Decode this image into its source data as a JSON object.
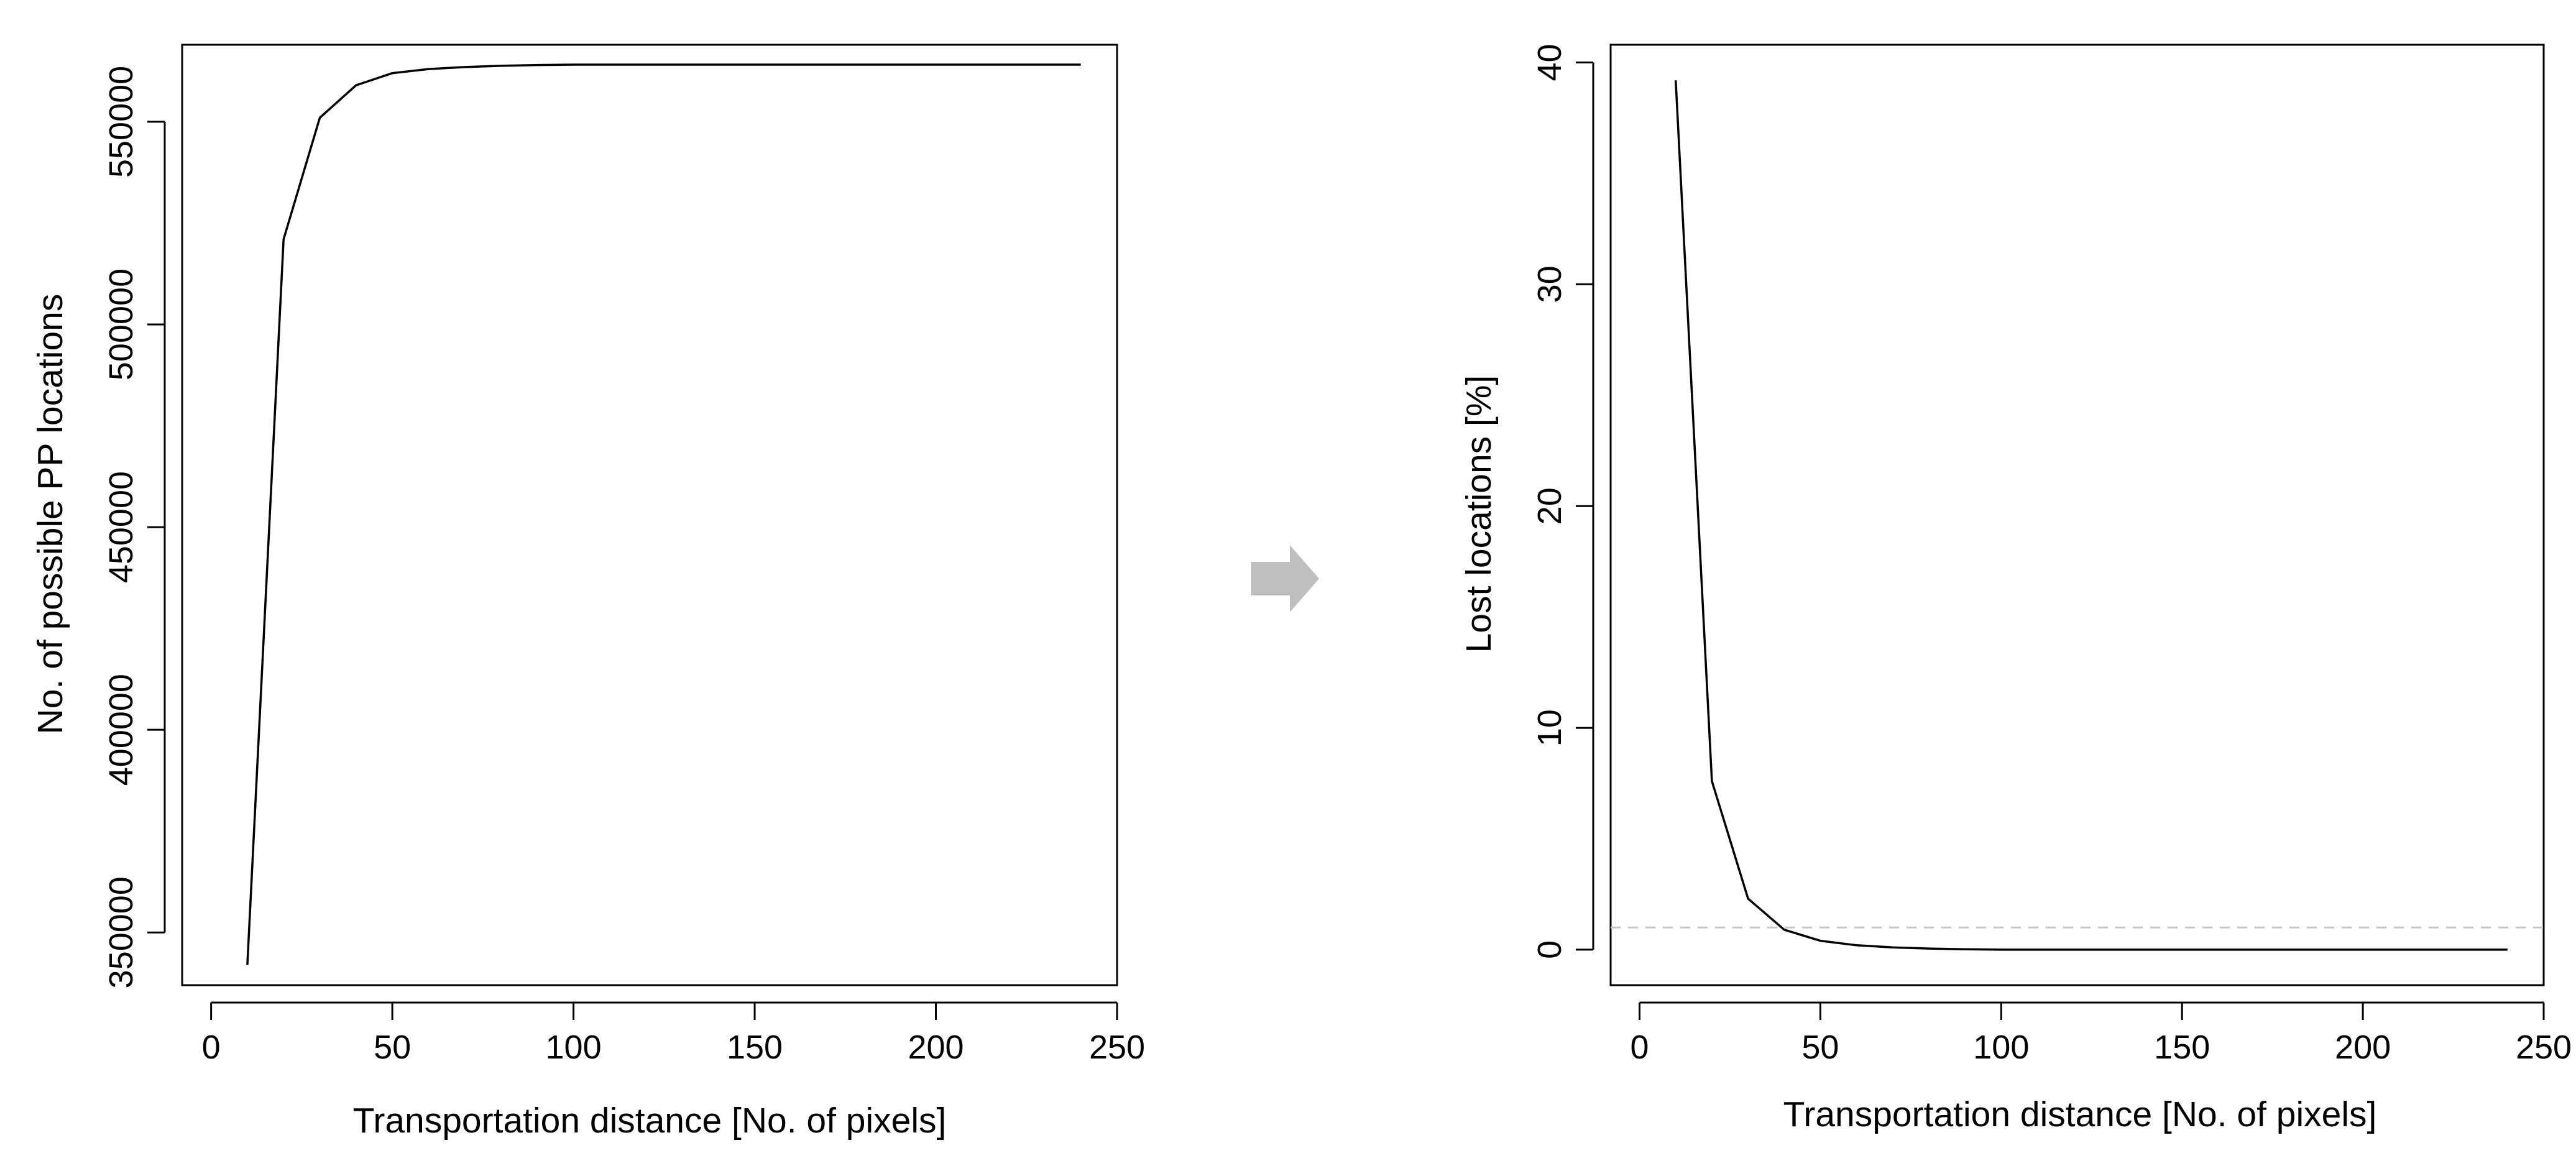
{
  "chart_data": [
    {
      "type": "line",
      "title": "",
      "xlabel": "Transportation distance [No. of pixels]",
      "ylabel": "No. of possible PP locations",
      "xlim": [
        -8,
        250
      ],
      "ylim": [
        337000,
        569000
      ],
      "xticks": [
        0,
        50,
        100,
        150,
        200,
        250
      ],
      "yticks": [
        350000,
        400000,
        450000,
        500000,
        550000
      ],
      "xtick_labels": [
        "0",
        "50",
        "100",
        "150",
        "200",
        "250"
      ],
      "ytick_labels": [
        "350000",
        "400000",
        "450000",
        "500000",
        "550000"
      ],
      "grid": false,
      "line_color": "#000000",
      "x": [
        10,
        20,
        30,
        40,
        50,
        60,
        70,
        80,
        90,
        100,
        110,
        120,
        130,
        140,
        150,
        160,
        170,
        180,
        190,
        200,
        210,
        220,
        230,
        240
      ],
      "values": [
        342000,
        521000,
        551000,
        559000,
        562000,
        563000,
        563500,
        563800,
        564000,
        564100,
        564100,
        564100,
        564100,
        564100,
        564100,
        564100,
        564100,
        564100,
        564100,
        564100,
        564100,
        564100,
        564100,
        564100
      ]
    },
    {
      "type": "line",
      "title": "",
      "xlabel": "Transportation distance [No. of pixels]",
      "ylabel": "Lost locations [%]",
      "xlim": [
        -8,
        250
      ],
      "ylim": [
        -1.6,
        40.8
      ],
      "xticks": [
        0,
        50,
        100,
        150,
        200,
        250
      ],
      "yticks": [
        0,
        10,
        20,
        30,
        40
      ],
      "xtick_labels": [
        "0",
        "50",
        "100",
        "150",
        "200",
        "250"
      ],
      "ytick_labels": [
        "0",
        "10",
        "20",
        "30",
        "40"
      ],
      "grid": false,
      "line_color": "#000000",
      "reference_line": {
        "y": 1,
        "color": "#c8c8c8",
        "style": "dashed"
      },
      "x": [
        10,
        20,
        30,
        40,
        50,
        60,
        70,
        80,
        90,
        100,
        110,
        120,
        130,
        140,
        150,
        160,
        170,
        180,
        190,
        200,
        210,
        220,
        230,
        240
      ],
      "values": [
        39.2,
        7.6,
        2.3,
        0.9,
        0.4,
        0.2,
        0.1,
        0.05,
        0.02,
        0,
        0,
        0,
        0,
        0,
        0,
        0,
        0,
        0,
        0,
        0,
        0,
        0,
        0,
        0
      ]
    }
  ],
  "connector": {
    "icon": "right-arrow-icon",
    "color": "#bfbfbf"
  }
}
